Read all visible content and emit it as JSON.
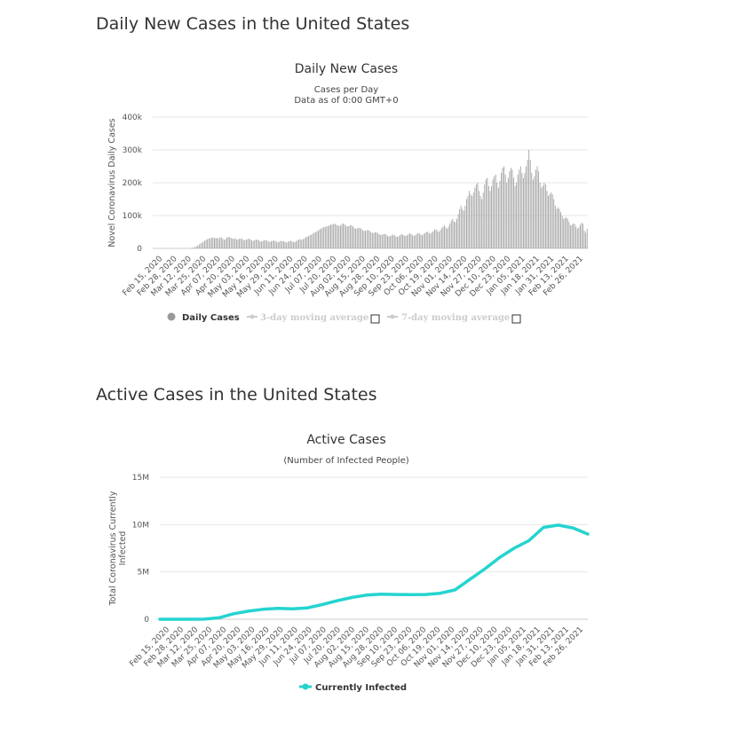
{
  "page": {
    "heading_daily": "Daily New Cases in the United States",
    "heading_active": "Active Cases in the United States"
  },
  "chart_data": [
    {
      "type": "bar",
      "title": "Daily New Cases",
      "subtitle_lines": [
        "Cases per Day",
        "Data as of 0:00 GMT+0"
      ],
      "xlabel": "",
      "ylabel": "Novel Coronavirus Daily Cases",
      "ylim": [
        0,
        400000
      ],
      "yticks": [
        0,
        100000,
        200000,
        300000,
        400000
      ],
      "ytick_labels": [
        "0",
        "100k",
        "200k",
        "300k",
        "400k"
      ],
      "xtick_labels": [
        "Feb 15, 2020",
        "Feb 28, 2020",
        "Mar 12, 2020",
        "Mar 25, 2020",
        "Apr 07, 2020",
        "Apr 20, 2020",
        "May 03, 2020",
        "May 16, 2020",
        "May 29, 2020",
        "Jun 11, 2020",
        "Jun 24, 2020",
        "Jul 07, 2020",
        "Jul 20, 2020",
        "Aug 02, 2020",
        "Aug 15, 2020",
        "Aug 28, 2020",
        "Sep 10, 2020",
        "Sep 23, 2020",
        "Oct 06, 2020",
        "Oct 19, 2020",
        "Nov 01, 2020",
        "Nov 14, 2020",
        "Nov 27, 2020",
        "Dec 10, 2020",
        "Dec 23, 2020",
        "Jan 05, 2021",
        "Jan 18, 2021",
        "Jan 31, 2021",
        "Feb 13, 2021",
        "Feb 26, 2021"
      ],
      "grid": true,
      "bar_color": "#a0a0a0",
      "legend_position": "bottom",
      "legend": [
        {
          "label": "Daily Cases",
          "active": true,
          "color": "#999999"
        },
        {
          "label": "3-day moving average",
          "active": false,
          "color": "#cccccc"
        },
        {
          "label": "7-day moving average",
          "active": false,
          "color": "#cccccc"
        }
      ],
      "series": [
        {
          "name": "Daily Cases",
          "values": [
            0,
            0,
            0,
            0,
            0,
            0,
            0,
            0,
            0,
            0,
            0,
            0,
            0,
            0,
            0,
            0,
            0,
            0,
            0,
            0,
            0,
            0,
            0,
            0,
            100,
            200,
            400,
            800,
            1500,
            2500,
            4000,
            6000,
            9000,
            12000,
            15000,
            18000,
            20000,
            23000,
            26000,
            28000,
            30000,
            31000,
            32000,
            33000,
            32000,
            31000,
            32000,
            30000,
            33000,
            34000,
            30000,
            26000,
            28000,
            33000,
            35000,
            34000,
            32000,
            30000,
            29000,
            31000,
            28000,
            27000,
            29000,
            30000,
            29000,
            26000,
            25000,
            27000,
            28000,
            30000,
            27000,
            24000,
            23000,
            25000,
            27000,
            26000,
            25000,
            22000,
            21000,
            23000,
            25000,
            25000,
            24000,
            21000,
            20000,
            22000,
            23000,
            24000,
            23000,
            20000,
            19000,
            21000,
            23000,
            22000,
            22000,
            19000,
            18000,
            20000,
            22000,
            23000,
            22000,
            20000,
            19000,
            22000,
            25000,
            27000,
            28000,
            26000,
            28000,
            31000,
            34000,
            36000,
            38000,
            40000,
            42000,
            45000,
            48000,
            50000,
            52000,
            55000,
            58000,
            60000,
            63000,
            65000,
            66000,
            67000,
            68000,
            70000,
            72000,
            73000,
            74000,
            75000,
            72000,
            70000,
            68000,
            70000,
            74000,
            76000,
            73000,
            69000,
            67000,
            68000,
            70000,
            71000,
            67000,
            62000,
            60000,
            61000,
            62000,
            63000,
            60000,
            56000,
            53000,
            54000,
            55000,
            56000,
            53000,
            50000,
            47000,
            48000,
            49000,
            50000,
            46000,
            43000,
            41000,
            42000,
            43000,
            44000,
            42000,
            38000,
            36000,
            38000,
            40000,
            42000,
            40000,
            37000,
            35000,
            37000,
            40000,
            43000,
            42000,
            39000,
            38000,
            40000,
            43000,
            46000,
            44000,
            40000,
            38000,
            41000,
            44000,
            47000,
            46000,
            42000,
            40000,
            44000,
            47000,
            50000,
            51000,
            47000,
            45000,
            49000,
            53000,
            57000,
            58000,
            53000,
            50000,
            56000,
            62000,
            66000,
            70000,
            64000,
            60000,
            67000,
            76000,
            85000,
            90000,
            82000,
            80000,
            90000,
            105000,
            120000,
            130000,
            120000,
            115000,
            130000,
            150000,
            160000,
            175000,
            165000,
            160000,
            170000,
            185000,
            195000,
            200000,
            175000,
            160000,
            150000,
            170000,
            195000,
            210000,
            215000,
            190000,
            175000,
            190000,
            210000,
            220000,
            225000,
            200000,
            185000,
            205000,
            230000,
            245000,
            250000,
            225000,
            200000,
            215000,
            235000,
            245000,
            240000,
            215000,
            190000,
            200000,
            225000,
            240000,
            250000,
            230000,
            215000,
            230000,
            250000,
            270000,
            300000,
            270000,
            230000,
            210000,
            220000,
            240000,
            250000,
            235000,
            200000,
            185000,
            190000,
            200000,
            195000,
            175000,
            160000,
            165000,
            170000,
            165000,
            150000,
            130000,
            120000,
            125000,
            120000,
            110000,
            100000,
            90000,
            92000,
            95000,
            90000,
            80000,
            70000,
            72000,
            76000,
            74000,
            66000,
            60000,
            64000,
            72000,
            78000,
            75000,
            55000,
            48000,
            60000
          ]
        }
      ]
    },
    {
      "type": "line",
      "title": "Active Cases",
      "subtitle_lines": [
        "(Number of Infected People)"
      ],
      "xlabel": "",
      "ylabel_lines": [
        "Total Coronavirus Currently",
        "Infected"
      ],
      "ylim": [
        0,
        15000000
      ],
      "yticks": [
        0,
        5000000,
        10000000,
        15000000
      ],
      "ytick_labels": [
        "0",
        "5M",
        "10M",
        "15M"
      ],
      "xtick_labels": [
        "Feb 15, 2020",
        "Feb 28, 2020",
        "Mar 12, 2020",
        "Mar 25, 2020",
        "Apr 07, 2020",
        "Apr 20, 2020",
        "May 03, 2020",
        "May 16, 2020",
        "May 29, 2020",
        "Jun 11, 2020",
        "Jun 24, 2020",
        "Jul 07, 2020",
        "Jul 20, 2020",
        "Aug 02, 2020",
        "Aug 15, 2020",
        "Aug 28, 2020",
        "Sep 10, 2020",
        "Sep 23, 2020",
        "Oct 06, 2020",
        "Oct 19, 2020",
        "Nov 01, 2020",
        "Nov 14, 2020",
        "Nov 27, 2020",
        "Dec 10, 2020",
        "Dec 23, 2020",
        "Jan 05, 2021",
        "Jan 18, 2021",
        "Jan 31, 2021",
        "Feb 13, 2021",
        "Feb 26, 2021"
      ],
      "grid": true,
      "legend_position": "bottom",
      "legend": [
        {
          "label": "Currently Infected",
          "active": true,
          "color": "#24d4cf"
        }
      ],
      "series": [
        {
          "name": "Currently Infected",
          "color": "#24d4cf",
          "values": [
            0,
            0,
            0,
            10000,
            150000,
            580000,
            850000,
            1050000,
            1150000,
            1100000,
            1200000,
            1550000,
            1950000,
            2300000,
            2550000,
            2650000,
            2620000,
            2600000,
            2620000,
            2750000,
            3100000,
            4200000,
            5300000,
            6500000,
            7500000,
            8300000,
            9700000,
            9950000,
            9650000,
            9000000
          ]
        }
      ]
    }
  ]
}
